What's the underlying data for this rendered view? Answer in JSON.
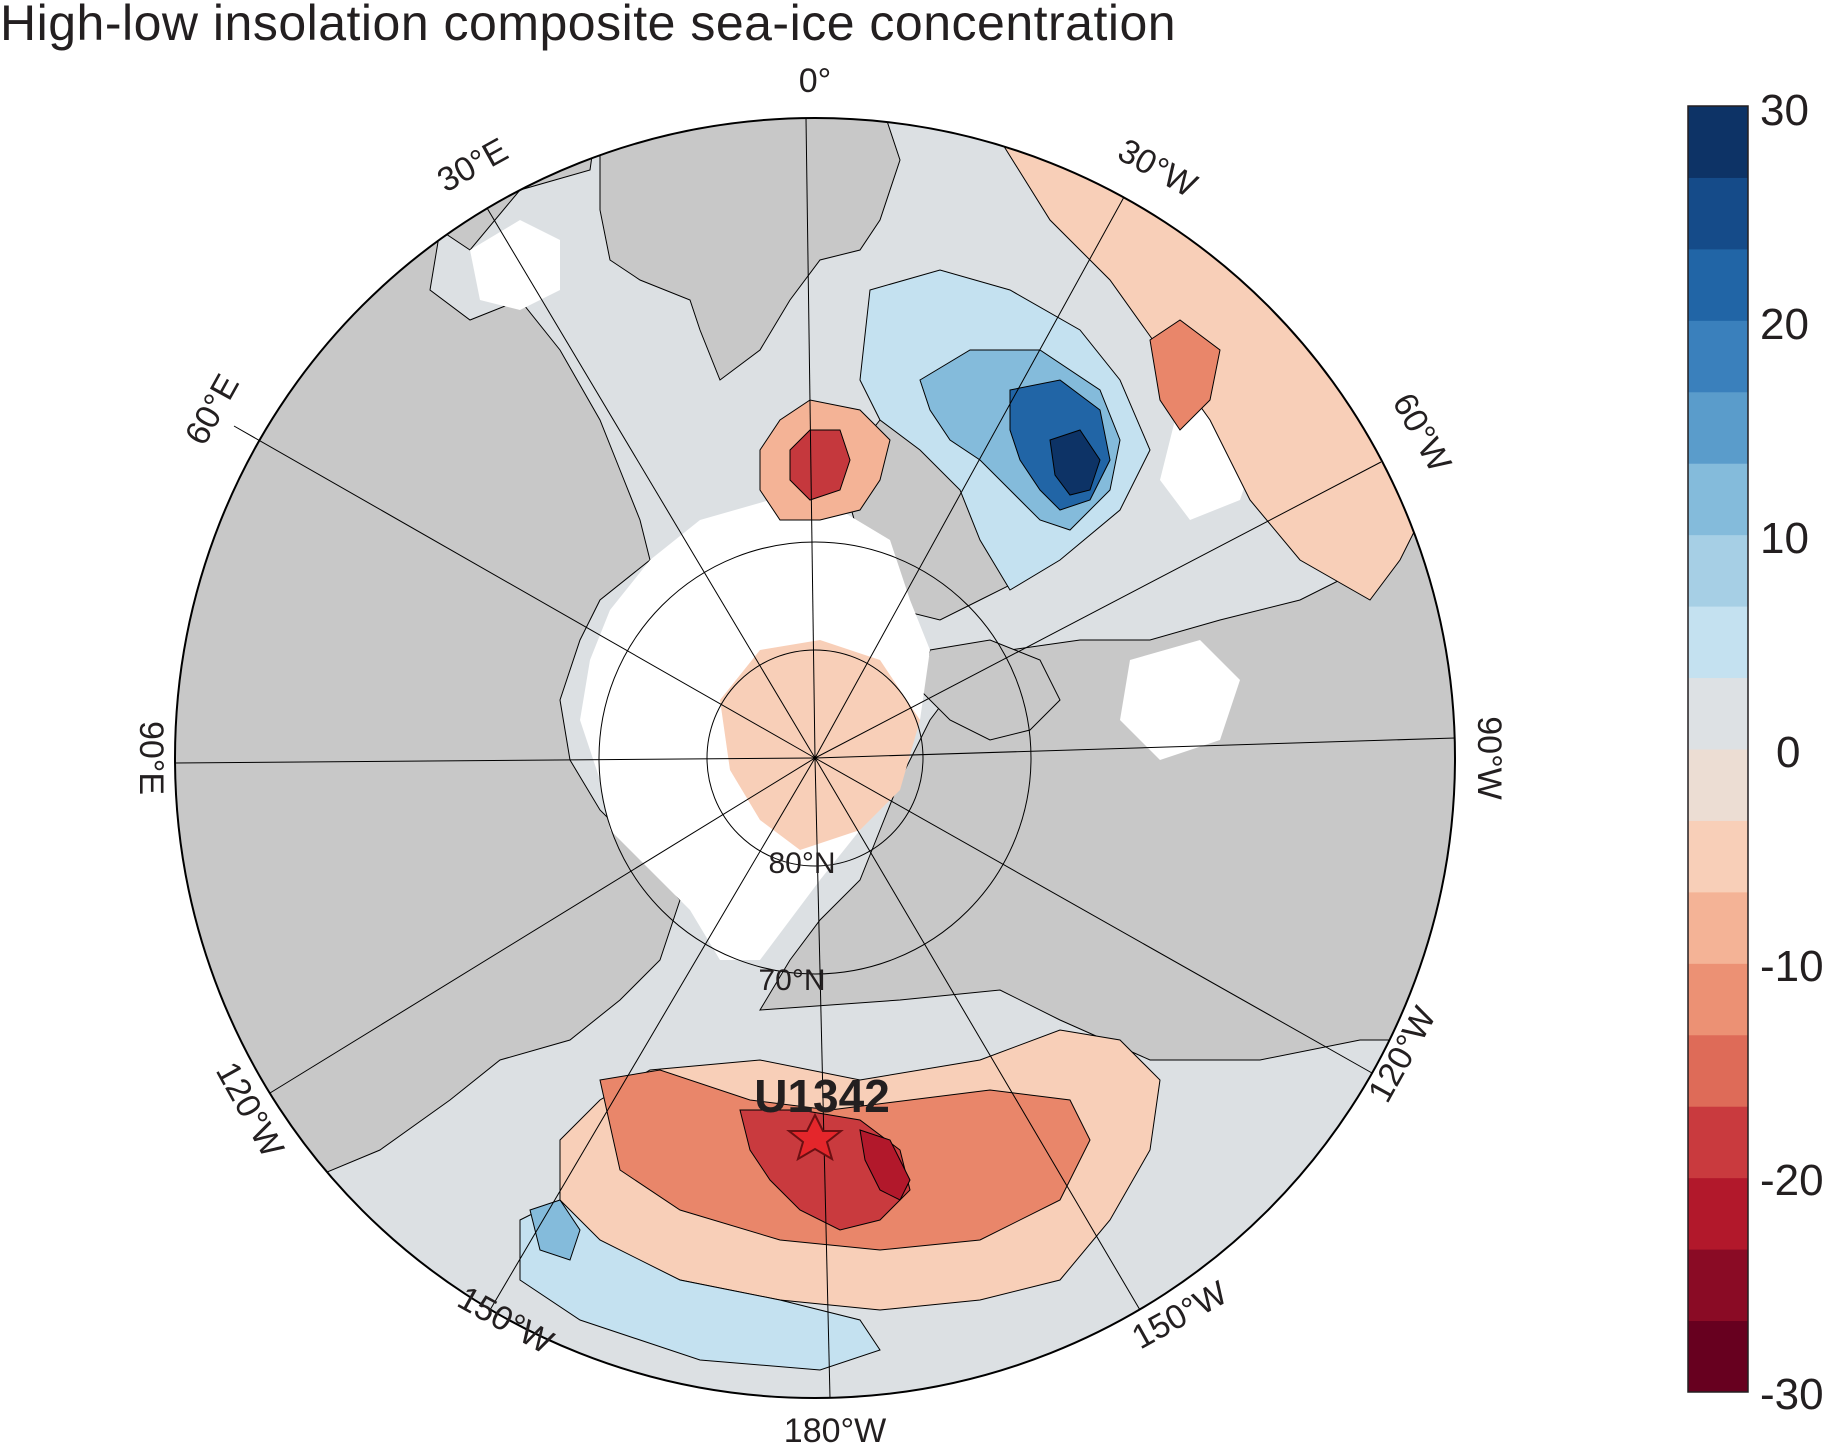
{
  "title": "High-low insolation composite sea-ice concentration",
  "map": {
    "longitude_labels": [
      "0°",
      "30°W",
      "60°W",
      "90°W",
      "120°W",
      "150°W",
      "180°W",
      "150°W",
      "120°W",
      "90°E",
      "60°E",
      "30°E"
    ],
    "latitude_labels": [
      "80°N",
      "70°N"
    ],
    "site": {
      "label": "U1342",
      "marker": "red-star"
    },
    "colors": {
      "land": "#c8c8c8",
      "zero": "#dce0e3",
      "neg_light": "#f8cdb6",
      "neg_mid": "#e9866a",
      "neg_strong": "#c5383d",
      "pos_light": "#c6e0ef",
      "pos_strong": "#1a4f8e"
    }
  },
  "colorbar": {
    "tick_labels": [
      "30",
      "20",
      "10",
      "0",
      "-10",
      "-20",
      "-30"
    ],
    "min": -30,
    "max": 30,
    "step": 5,
    "colors": [
      "#67001f",
      "#8a0b25",
      "#b2182b",
      "#c93a3e",
      "#de6b58",
      "#ec9174",
      "#f4b396",
      "#f8cfb8",
      "#ecddd3",
      "#dde1e4",
      "#c4e1f0",
      "#a6cfe5",
      "#84bbdb",
      "#5a9ccb",
      "#3a80bc",
      "#2165a6",
      "#154b89",
      "#0d3366"
    ]
  }
}
